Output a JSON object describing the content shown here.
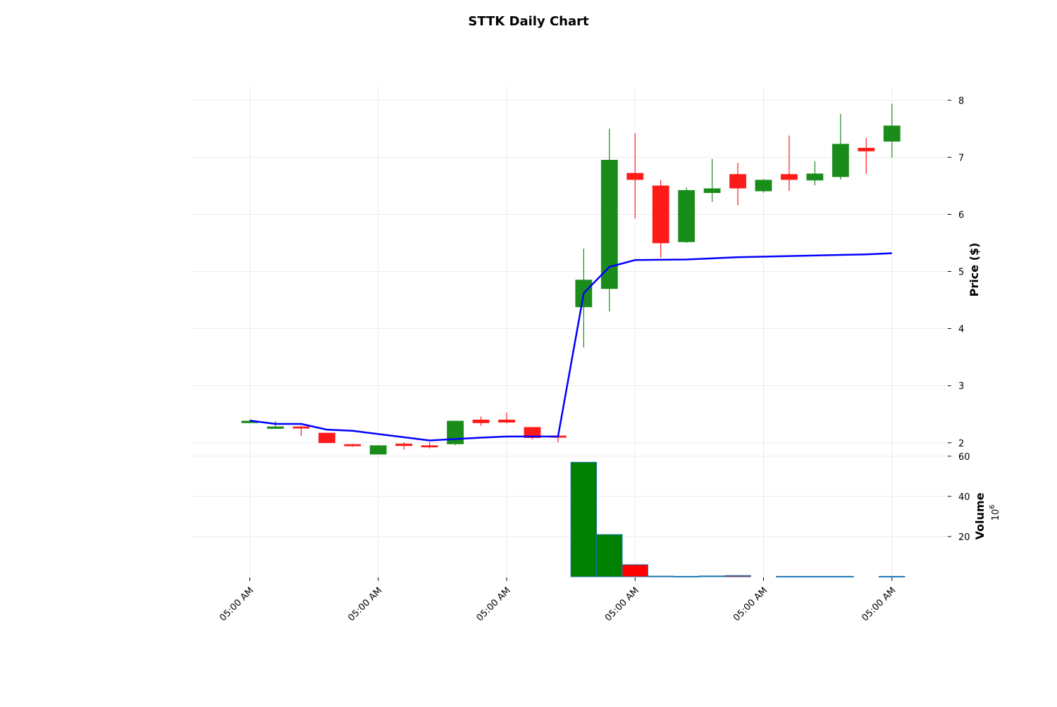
{
  "colors": {
    "up": "#1a8c1a",
    "down": "#ff1a1a",
    "volume_up": "#008000",
    "volume_down": "#ff0000",
    "volume_edge": "#1f77b4",
    "moving_average": "#0000ff",
    "grid": "#e6e6e6"
  },
  "chart_data": {
    "type": "candlestick",
    "title": "STTK Daily Chart",
    "price_axis_label": "Price ($)",
    "volume_axis_label": "Volume",
    "volume_axis_multiplier": "10",
    "volume_axis_exponent": "6",
    "price_ticks": [
      2,
      3,
      4,
      5,
      6,
      7,
      8
    ],
    "volume_ticks": [
      20,
      40,
      60
    ],
    "x_ticks": [
      {
        "index": 0,
        "label": "05:00 AM"
      },
      {
        "index": 5,
        "label": "05:00 AM"
      },
      {
        "index": 10,
        "label": "05:00 AM"
      },
      {
        "index": 15,
        "label": "05:00 AM"
      },
      {
        "index": 20,
        "label": "05:00 AM"
      },
      {
        "index": 25,
        "label": "05:00 AM"
      }
    ],
    "price_ylim": [
      1.8,
      8.25
    ],
    "volume_ylim": [
      0,
      61
    ],
    "grid": true,
    "candles": [
      {
        "open": 2.35,
        "high": 2.4,
        "low": 2.34,
        "close": 2.38
      },
      {
        "open": 2.25,
        "high": 2.38,
        "low": 2.25,
        "close": 2.28
      },
      {
        "open": 2.28,
        "high": 2.3,
        "low": 2.12,
        "close": 2.26
      },
      {
        "open": 2.17,
        "high": 2.17,
        "low": 2.0,
        "close": 2.0
      },
      {
        "open": 1.97,
        "high": 1.98,
        "low": 1.93,
        "close": 1.96
      },
      {
        "open": 1.8,
        "high": 1.95,
        "low": 1.8,
        "close": 1.95
      },
      {
        "open": 1.98,
        "high": 2.01,
        "low": 1.88,
        "close": 1.95
      },
      {
        "open": 1.95,
        "high": 2.01,
        "low": 1.9,
        "close": 1.94
      },
      {
        "open": 1.98,
        "high": 2.38,
        "low": 1.96,
        "close": 2.38
      },
      {
        "open": 2.4,
        "high": 2.46,
        "low": 2.3,
        "close": 2.35
      },
      {
        "open": 2.4,
        "high": 2.53,
        "low": 2.34,
        "close": 2.36
      },
      {
        "open": 2.27,
        "high": 2.27,
        "low": 2.06,
        "close": 2.09
      },
      {
        "open": 2.12,
        "high": 2.12,
        "low": 2.01,
        "close": 2.1
      },
      {
        "open": 4.38,
        "high": 5.4,
        "low": 3.67,
        "close": 4.85
      },
      {
        "open": 4.7,
        "high": 7.5,
        "low": 4.3,
        "close": 6.95
      },
      {
        "open": 6.72,
        "high": 7.42,
        "low": 5.93,
        "close": 6.61
      },
      {
        "open": 6.5,
        "high": 6.6,
        "low": 5.24,
        "close": 5.5
      },
      {
        "open": 5.52,
        "high": 6.47,
        "low": 5.5,
        "close": 6.42
      },
      {
        "open": 6.38,
        "high": 6.97,
        "low": 6.22,
        "close": 6.45
      },
      {
        "open": 6.7,
        "high": 6.9,
        "low": 6.16,
        "close": 6.46
      },
      {
        "open": 6.41,
        "high": 6.62,
        "low": 6.38,
        "close": 6.6
      },
      {
        "open": 6.7,
        "high": 7.38,
        "low": 6.41,
        "close": 6.61
      },
      {
        "open": 6.6,
        "high": 6.93,
        "low": 6.51,
        "close": 6.71
      },
      {
        "open": 6.66,
        "high": 7.76,
        "low": 6.61,
        "close": 7.23
      },
      {
        "open": 7.16,
        "high": 7.34,
        "low": 6.71,
        "close": 7.11
      },
      {
        "open": 7.28,
        "high": 7.94,
        "low": 6.99,
        "close": 7.55
      }
    ],
    "moving_average": [
      {
        "index": 0,
        "value": 2.39
      },
      {
        "index": 1,
        "value": 2.33
      },
      {
        "index": 2,
        "value": 2.33
      },
      {
        "index": 3,
        "value": 2.23
      },
      {
        "index": 4,
        "value": 2.21
      },
      {
        "index": 7,
        "value": 2.04
      },
      {
        "index": 9,
        "value": 2.09
      },
      {
        "index": 10,
        "value": 2.11
      },
      {
        "index": 12,
        "value": 2.11
      },
      {
        "index": 13,
        "value": 4.62
      },
      {
        "index": 14,
        "value": 5.08
      },
      {
        "index": 15,
        "value": 5.2
      },
      {
        "index": 17,
        "value": 5.21
      },
      {
        "index": 19,
        "value": 5.25
      },
      {
        "index": 21,
        "value": 5.27
      },
      {
        "index": 23,
        "value": 5.29
      },
      {
        "index": 24,
        "value": 5.3
      },
      {
        "index": 25,
        "value": 5.32
      }
    ],
    "volume_bars": [
      {
        "start": 12.5,
        "end": 13.5,
        "value": 57.0,
        "direction": "up"
      },
      {
        "start": 13.5,
        "end": 14.5,
        "value": 21.0,
        "direction": "up"
      },
      {
        "start": 14.5,
        "end": 15.5,
        "value": 6.0,
        "direction": "down"
      },
      {
        "start": 15.5,
        "end": 16.5,
        "value": 0.3,
        "direction": "down"
      },
      {
        "start": 16.5,
        "end": 17.5,
        "value": 0.2,
        "direction": "up"
      },
      {
        "start": 17.5,
        "end": 18.5,
        "value": 0.4,
        "direction": "up"
      },
      {
        "start": 18.5,
        "end": 19.5,
        "value": 0.6,
        "direction": "down"
      },
      {
        "start": 20.5,
        "end": 23.5,
        "value": 0.2,
        "direction": "up"
      },
      {
        "start": 24.5,
        "end": 25.5,
        "value": 0.2,
        "direction": "up"
      }
    ]
  }
}
